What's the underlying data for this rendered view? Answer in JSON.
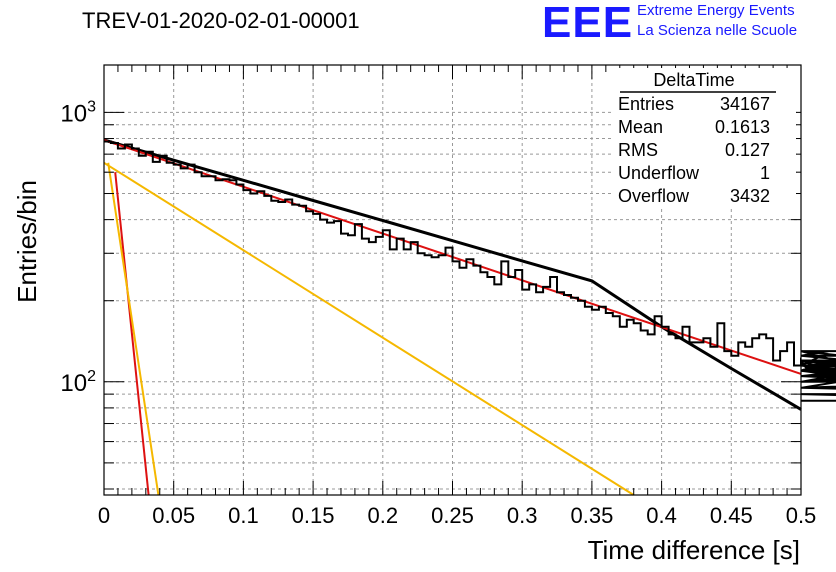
{
  "title": "TREV-01-2020-02-01-00001",
  "logo": {
    "mark": "EEE",
    "line1": "Extreme Energy Events",
    "line2": "La Scienza nelle Scuole"
  },
  "colors": {
    "histogram": "#000000",
    "fit_total": "#000000",
    "red_components": "#dd1111",
    "yellow_components": "#f5b800",
    "grid": "#999999",
    "logo": "#1a1aff"
  },
  "stats_box": {
    "name": "DeltaTime",
    "rows": [
      {
        "label": "Entries",
        "value": "34167"
      },
      {
        "label": "Mean",
        "value": "0.1613"
      },
      {
        "label": "RMS",
        "value": "0.127"
      },
      {
        "label": "Underflow",
        "value": "1"
      },
      {
        "label": "Overflow",
        "value": "3432"
      }
    ]
  },
  "chart_data": {
    "type": "line",
    "xlabel": "Time difference [s]",
    "ylabel": "Entries/bin",
    "xlim": [
      0,
      0.5
    ],
    "ylim": [
      38,
      1500
    ],
    "ylog": true,
    "grid": true,
    "x_ticks": [
      "0",
      "0.05",
      "0.1",
      "0.15",
      "0.2",
      "0.25",
      "0.3",
      "0.35",
      "0.4",
      "0.45",
      "0.5"
    ],
    "y_ticks": [
      {
        "base": "10",
        "exp": "2",
        "value": 100
      },
      {
        "base": "10",
        "exp": "3",
        "value": 1000
      }
    ],
    "histogram": {
      "bin_width": 0.005,
      "x_start": 0,
      "values": [
        780,
        770,
        735,
        760,
        735,
        690,
        715,
        655,
        690,
        650,
        640,
        620,
        640,
        600,
        580,
        580,
        560,
        565,
        560,
        540,
        515,
        500,
        510,
        490,
        470,
        465,
        475,
        455,
        450,
        430,
        420,
        400,
        390,
        395,
        355,
        350,
        385,
        340,
        330,
        345,
        365,
        310,
        340,
        310,
        330,
        300,
        295,
        290,
        295,
        315,
        280,
        265,
        285,
        270,
        255,
        245,
        230,
        280,
        245,
        260,
        220,
        230,
        215,
        225,
        245,
        215,
        210,
        205,
        200,
        190,
        185,
        190,
        180,
        175,
        160,
        170,
        165,
        155,
        150,
        175,
        160,
        150,
        145,
        160,
        140,
        140,
        145,
        135,
        165,
        130,
        125,
        140,
        135,
        145,
        150,
        145,
        120,
        130,
        140,
        115,
        120,
        110,
        115,
        125,
        130,
        120,
        105,
        110,
        120,
        110,
        120,
        115,
        105,
        110,
        100,
        105,
        115,
        100,
        110,
        95,
        115,
        120,
        105,
        100,
        130,
        110,
        95,
        100,
        110,
        125,
        105,
        100,
        120,
        110,
        105,
        95,
        95,
        90,
        90,
        85
      ]
    },
    "curves": [
      {
        "role": "fit_total",
        "points": [
          [
            0,
            790
          ],
          [
            0.05,
            665
          ],
          [
            0.1,
            560
          ],
          [
            0.15,
            471
          ],
          [
            0.2,
            397
          ],
          [
            0.25,
            334
          ],
          [
            0.3,
            281
          ],
          [
            0.35,
            237
          ],
          [
            0.4,
            160
          ],
          [
            0.45,
            112
          ],
          [
            0.5,
            79
          ]
        ]
      },
      {
        "role": "red_slow",
        "points": [
          [
            0,
            790
          ],
          [
            0.5,
            107
          ]
        ]
      },
      {
        "role": "red_fast",
        "points": [
          [
            0.008,
            600
          ],
          [
            0.032,
            38
          ]
        ]
      },
      {
        "role": "yellow_slow",
        "points": [
          [
            0,
            650
          ],
          [
            0.38,
            38
          ]
        ]
      },
      {
        "role": "yellow_fast",
        "points": [
          [
            0.003,
            650
          ],
          [
            0.039,
            38
          ]
        ]
      }
    ]
  }
}
